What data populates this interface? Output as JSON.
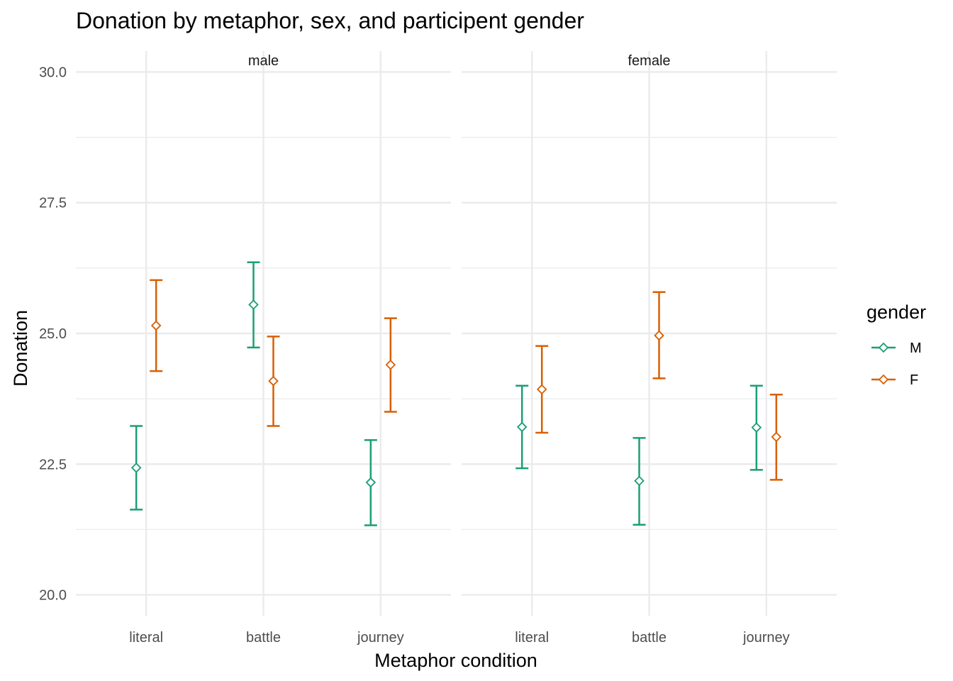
{
  "chart_data": {
    "type": "scatter",
    "title": "Donation by metaphor, sex, and participent gender",
    "xlabel": "Metaphor condition",
    "ylabel": "Donation",
    "categories": [
      "literal",
      "battle",
      "journey"
    ],
    "ylim": [
      19.6,
      30.4
    ],
    "y_ticks": [
      20.0,
      22.5,
      25.0,
      27.5,
      30.0
    ],
    "y_tick_labels": [
      "20.0",
      "22.5",
      "25.0",
      "27.5",
      "30.0"
    ],
    "grid": true,
    "legend_position": "right",
    "legend_title": "gender",
    "series_colors": {
      "M": "#1b9e77",
      "F": "#d95f02"
    },
    "panels": [
      {
        "label": "male",
        "series": [
          {
            "name": "M",
            "mean": [
              22.43,
              25.55,
              22.15
            ],
            "lower": [
              21.63,
              24.73,
              21.33
            ],
            "upper": [
              23.23,
              26.36,
              22.96
            ]
          },
          {
            "name": "F",
            "mean": [
              25.15,
              24.09,
              24.4
            ],
            "lower": [
              24.28,
              23.23,
              23.5
            ],
            "upper": [
              26.02,
              24.94,
              25.29
            ]
          }
        ]
      },
      {
        "label": "female",
        "series": [
          {
            "name": "M",
            "mean": [
              23.21,
              22.18,
              23.2
            ],
            "lower": [
              22.42,
              21.34,
              22.39
            ],
            "upper": [
              24.0,
              23.0,
              24.0
            ]
          },
          {
            "name": "F",
            "mean": [
              23.93,
              24.96,
              23.02
            ],
            "lower": [
              23.1,
              24.14,
              22.2
            ],
            "upper": [
              24.76,
              25.79,
              23.83
            ]
          }
        ]
      }
    ]
  }
}
